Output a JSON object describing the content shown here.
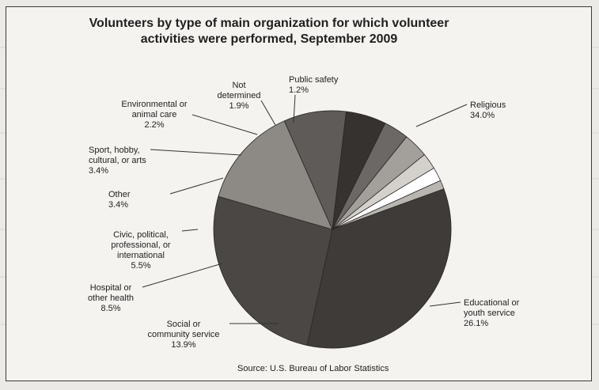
{
  "chart_data": {
    "type": "pie",
    "title_lines": [
      "Volunteers by type of main organization for which volunteer",
      "activities were performed, September 2009"
    ],
    "source": "Source: U.S. Bureau of Labor Statistics",
    "slices": [
      {
        "name": "Religious",
        "label_lines": [
          "Religious",
          "34.0%"
        ],
        "value": 34.0,
        "color": "#3f3b38"
      },
      {
        "name": "Educational or youth service",
        "label_lines": [
          "Educational or",
          "youth service",
          "26.1%"
        ],
        "value": 26.1,
        "color": "#4a4744"
      },
      {
        "name": "Social or community service",
        "label_lines": [
          "Social or",
          "community service",
          "13.9%"
        ],
        "value": 13.9,
        "color": "#8d8a86"
      },
      {
        "name": "Hospital or other health",
        "label_lines": [
          "Hospital or",
          "other health",
          "8.5%"
        ],
        "value": 8.5,
        "color": "#5e5b58"
      },
      {
        "name": "Civic, political, professional, or international",
        "label_lines": [
          "Civic, political,",
          "professional, or",
          "international",
          "5.5%"
        ],
        "value": 5.5,
        "color": "#353230"
      },
      {
        "name": "Other",
        "label_lines": [
          "Other",
          "3.4%"
        ],
        "value": 3.4,
        "color": "#6b6865"
      },
      {
        "name": "Sport, hobby, cultural, or arts",
        "label_lines": [
          "Sport, hobby,",
          "cultural, or arts",
          "3.4%"
        ],
        "value": 3.4,
        "color": "#a3a09c"
      },
      {
        "name": "Environmental or animal care",
        "label_lines": [
          "Environmental or",
          "animal care",
          "2.2%"
        ],
        "value": 2.2,
        "color": "#d4d1cc"
      },
      {
        "name": "Not determined",
        "label_lines": [
          "Not",
          "determined",
          "1.9%"
        ],
        "value": 1.9,
        "color": "#ffffff"
      },
      {
        "name": "Public safety",
        "label_lines": [
          "Public safety",
          "1.2%"
        ],
        "value": 1.2,
        "color": "#b9b6b1"
      }
    ]
  }
}
